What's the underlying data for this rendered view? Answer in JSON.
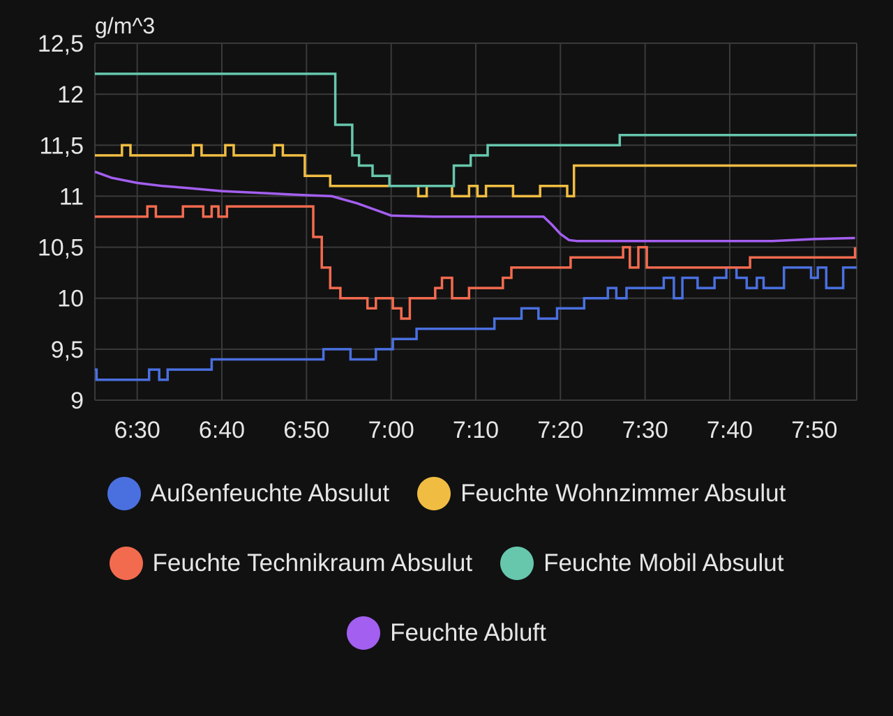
{
  "chart_data": {
    "type": "line",
    "ylabel": "g/m^3",
    "ylim": [
      9,
      12.5
    ],
    "yticks": [
      "12,5",
      "12",
      "11,5",
      "11",
      "10,5",
      "10",
      "9,5",
      "9"
    ],
    "ytick_values": [
      12.5,
      12,
      11.5,
      11,
      10.5,
      10,
      9.5,
      9
    ],
    "xlim": [
      "6:25",
      "7:55"
    ],
    "xticks": [
      "6:30",
      "6:40",
      "6:50",
      "7:00",
      "7:10",
      "7:20",
      "7:30",
      "7:40",
      "7:50"
    ],
    "step": true,
    "grid": true,
    "legend_position": "bottom",
    "series": [
      {
        "name": "Außenfeuchte Absulut",
        "color": "#4a70e0",
        "points": [
          [
            "6:25",
            9.3
          ],
          [
            "6:25.2",
            9.2
          ],
          [
            "6:31.4",
            9.3
          ],
          [
            "6:32.6",
            9.2
          ],
          [
            "6:33.6",
            9.3
          ],
          [
            "6:38.8",
            9.4
          ],
          [
            "6:52",
            9.5
          ],
          [
            "6:55.2",
            9.4
          ],
          [
            "6:58.2",
            9.5
          ],
          [
            "7:00.2",
            9.6
          ],
          [
            "7:03",
            9.7
          ],
          [
            "7:12.2",
            9.8
          ],
          [
            "7:15.4",
            9.9
          ],
          [
            "7:17.4",
            9.8
          ],
          [
            "7:19.6",
            9.9
          ],
          [
            "7:22.8",
            10
          ],
          [
            "7:25.6",
            10.1
          ],
          [
            "7:26.6",
            10
          ],
          [
            "7:27.8",
            10.1
          ],
          [
            "7:32.2",
            10.2
          ],
          [
            "7:33.4",
            10
          ],
          [
            "7:34.4",
            10.2
          ],
          [
            "7:36.2",
            10.1
          ],
          [
            "7:38.2",
            10.2
          ],
          [
            "7:39.6",
            10.3
          ],
          [
            "7:40.8",
            10.2
          ],
          [
            "7:42",
            10.1
          ],
          [
            "7:43.2",
            10.2
          ],
          [
            "7:44",
            10.1
          ],
          [
            "7:46.4",
            10.3
          ],
          [
            "7:49.6",
            10.2
          ],
          [
            "7:50.4",
            10.3
          ],
          [
            "7:51.4",
            10.1
          ],
          [
            "7:53.4",
            10.3
          ],
          [
            "7:55",
            10.3
          ]
        ]
      },
      {
        "name": "Feuchte Wohnzimmer Absulut",
        "color": "#f0bd42",
        "points": [
          [
            "6:25",
            11.4
          ],
          [
            "6:28.2",
            11.5
          ],
          [
            "6:29.2",
            11.4
          ],
          [
            "6:31.6",
            11.4
          ],
          [
            "6:36.6",
            11.5
          ],
          [
            "6:37.6",
            11.4
          ],
          [
            "6:40.4",
            11.5
          ],
          [
            "6:41.4",
            11.4
          ],
          [
            "6:46.2",
            11.5
          ],
          [
            "6:47.2",
            11.4
          ],
          [
            "6:49.8",
            11.2
          ],
          [
            "6:52.8",
            11.1
          ],
          [
            "7:00.4",
            11.1
          ],
          [
            "7:03.2",
            11
          ],
          [
            "7:04.2",
            11.1
          ],
          [
            "7:07.2",
            11
          ],
          [
            "7:09.2",
            11.1
          ],
          [
            "7:10.2",
            11
          ],
          [
            "7:11.2",
            11.1
          ],
          [
            "7:14.4",
            11
          ],
          [
            "7:17.6",
            11.1
          ],
          [
            "7:20.8",
            11
          ],
          [
            "7:21.6",
            11.3
          ],
          [
            "7:55",
            11.3
          ]
        ]
      },
      {
        "name": "Feuchte Technikraum Absulut",
        "color": "#f36b4f",
        "points": [
          [
            "6:25",
            10.8
          ],
          [
            "6:31.2",
            10.9
          ],
          [
            "6:32.2",
            10.8
          ],
          [
            "6:35.4",
            10.9
          ],
          [
            "6:37.8",
            10.8
          ],
          [
            "6:38.8",
            10.9
          ],
          [
            "6:39.6",
            10.8
          ],
          [
            "6:40.6",
            10.9
          ],
          [
            "6:50.8",
            10.6
          ],
          [
            "6:51.8",
            10.3
          ],
          [
            "6:52.8",
            10.1
          ],
          [
            "6:54",
            10
          ],
          [
            "6:57.2",
            9.9
          ],
          [
            "6:58.2",
            10
          ],
          [
            "7:00.2",
            9.9
          ],
          [
            "7:01.2",
            9.8
          ],
          [
            "7:02.2",
            10
          ],
          [
            "7:05.2",
            10.1
          ],
          [
            "7:06",
            10.2
          ],
          [
            "7:07.2",
            10
          ],
          [
            "7:09.2",
            10.1
          ],
          [
            "7:13.2",
            10.2
          ],
          [
            "7:14.2",
            10.3
          ],
          [
            "7:21.2",
            10.4
          ],
          [
            "7:27.4",
            10.5
          ],
          [
            "7:28.2",
            10.3
          ],
          [
            "7:29.2",
            10.5
          ],
          [
            "7:30.2",
            10.3
          ],
          [
            "7:38.4",
            10.3
          ],
          [
            "7:39.2",
            10.3
          ],
          [
            "7:41.6",
            10.3
          ],
          [
            "7:42.4",
            10.4
          ],
          [
            "7:54.8",
            10.5
          ]
        ]
      },
      {
        "name": "Feuchte Mobil Absulut",
        "color": "#67c7ad",
        "points": [
          [
            "6:25",
            12.2
          ],
          [
            "6:53.4",
            11.7
          ],
          [
            "6:55.4",
            11.4
          ],
          [
            "6:56.2",
            11.3
          ],
          [
            "6:57.8",
            11.2
          ],
          [
            "6:59.8",
            11.1
          ],
          [
            "7:07.4",
            11.3
          ],
          [
            "7:09.4",
            11.4
          ],
          [
            "7:11.4",
            11.5
          ],
          [
            "7:27",
            11.6
          ],
          [
            "7:55",
            11.6
          ]
        ]
      },
      {
        "name": "Feuchte Abluft",
        "color": "#a35ff0",
        "points": [
          [
            "6:25",
            11.24
          ],
          [
            "6:27",
            11.18
          ],
          [
            "6:30",
            11.13
          ],
          [
            "6:33",
            11.1
          ],
          [
            "6:36",
            11.08
          ],
          [
            "6:40",
            11.05
          ],
          [
            "6:45",
            11.03
          ],
          [
            "6:50",
            11.01
          ],
          [
            "6:53",
            11.0
          ],
          [
            "6:56",
            10.93
          ],
          [
            "6:58",
            10.87
          ],
          [
            "7:00",
            10.81
          ],
          [
            "7:05",
            10.8
          ],
          [
            "7:10",
            10.8
          ],
          [
            "7:18",
            10.8
          ],
          [
            "7:19",
            10.72
          ],
          [
            "7:20",
            10.63
          ],
          [
            "7:21",
            10.57
          ],
          [
            "7:22",
            10.56
          ],
          [
            "7:30",
            10.56
          ],
          [
            "7:45",
            10.56
          ],
          [
            "7:50",
            10.58
          ],
          [
            "7:54.8",
            10.59
          ]
        ]
      }
    ]
  }
}
